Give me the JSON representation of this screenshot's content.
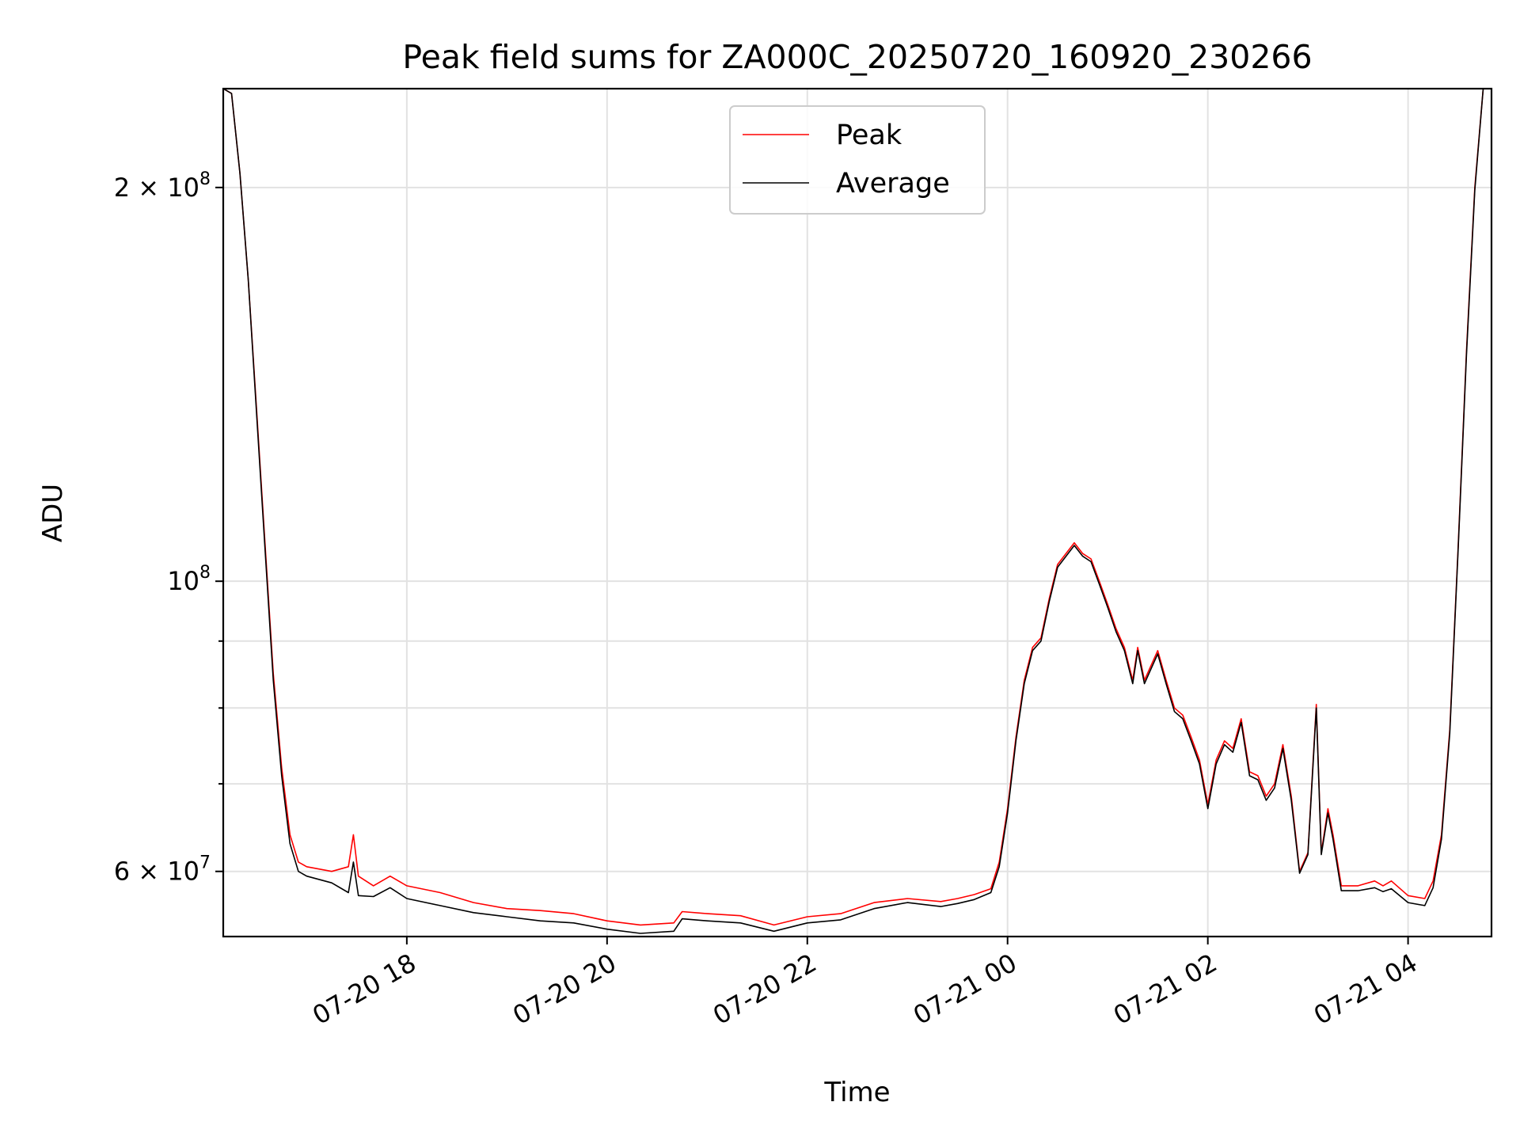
{
  "chart_data": {
    "type": "line",
    "title": "Peak field sums for ZA000C_20250720_160920_230266",
    "xlabel": "Time",
    "ylabel": "ADU",
    "yscale": "log",
    "grid": true,
    "legend_position": "top-center",
    "x_range": [
      "2025-07-20 16:10",
      "2025-07-21 04:50"
    ],
    "ylim": [
      53500000,
      238000000
    ],
    "x_ticks": [
      {
        "value": "2025-07-20 18:00",
        "label": "07-20 18"
      },
      {
        "value": "2025-07-20 20:00",
        "label": "07-20 20"
      },
      {
        "value": "2025-07-20 22:00",
        "label": "07-20 22"
      },
      {
        "value": "2025-07-21 00:00",
        "label": "07-21 00"
      },
      {
        "value": "2025-07-21 02:00",
        "label": "07-21 02"
      },
      {
        "value": "2025-07-21 04:00",
        "label": "07-21 04"
      }
    ],
    "y_ticks": [
      {
        "value": 60000000,
        "base": "6 × 10",
        "exp": "7"
      },
      {
        "value": 100000000,
        "base": "10",
        "exp": "8"
      },
      {
        "value": 200000000,
        "base": "2 × 10",
        "exp": "8"
      }
    ],
    "y_minor_ticks": [
      70000000,
      80000000,
      90000000
    ],
    "series": [
      {
        "name": "Peak",
        "color": "#ff0000",
        "points": [
          [
            "2025-07-20 16:10",
            238000000
          ],
          [
            "2025-07-20 16:15",
            236000000
          ],
          [
            "2025-07-20 16:20",
            205000000
          ],
          [
            "2025-07-20 16:25",
            170000000
          ],
          [
            "2025-07-20 16:30",
            135000000
          ],
          [
            "2025-07-20 16:35",
            107000000
          ],
          [
            "2025-07-20 16:40",
            85000000
          ],
          [
            "2025-07-20 16:45",
            72000000
          ],
          [
            "2025-07-20 16:50",
            64000000
          ],
          [
            "2025-07-20 16:55",
            61000000
          ],
          [
            "2025-07-20 17:00",
            60500000
          ],
          [
            "2025-07-20 17:15",
            60000000
          ],
          [
            "2025-07-20 17:25",
            60500000
          ],
          [
            "2025-07-20 17:28",
            64000000
          ],
          [
            "2025-07-20 17:31",
            59500000
          ],
          [
            "2025-07-20 17:40",
            58500000
          ],
          [
            "2025-07-20 17:50",
            59500000
          ],
          [
            "2025-07-20 18:00",
            58500000
          ],
          [
            "2025-07-20 18:20",
            57800000
          ],
          [
            "2025-07-20 18:40",
            56800000
          ],
          [
            "2025-07-20 19:00",
            56200000
          ],
          [
            "2025-07-20 19:20",
            56000000
          ],
          [
            "2025-07-20 19:40",
            55700000
          ],
          [
            "2025-07-20 20:00",
            55000000
          ],
          [
            "2025-07-20 20:20",
            54600000
          ],
          [
            "2025-07-20 20:40",
            54800000
          ],
          [
            "2025-07-20 20:45",
            55900000
          ],
          [
            "2025-07-20 21:00",
            55700000
          ],
          [
            "2025-07-20 21:20",
            55500000
          ],
          [
            "2025-07-20 21:40",
            54600000
          ],
          [
            "2025-07-20 22:00",
            55400000
          ],
          [
            "2025-07-20 22:20",
            55700000
          ],
          [
            "2025-07-20 22:40",
            56800000
          ],
          [
            "2025-07-20 23:00",
            57200000
          ],
          [
            "2025-07-20 23:20",
            56900000
          ],
          [
            "2025-07-20 23:30",
            57200000
          ],
          [
            "2025-07-20 23:40",
            57600000
          ],
          [
            "2025-07-20 23:50",
            58200000
          ],
          [
            "2025-07-20 23:55",
            61000000
          ],
          [
            "2025-07-21 00:00",
            67000000
          ],
          [
            "2025-07-21 00:05",
            76000000
          ],
          [
            "2025-07-21 00:10",
            84000000
          ],
          [
            "2025-07-21 00:15",
            89000000
          ],
          [
            "2025-07-21 00:20",
            90500000
          ],
          [
            "2025-07-21 00:25",
            97000000
          ],
          [
            "2025-07-21 00:30",
            103000000
          ],
          [
            "2025-07-21 00:40",
            107000000
          ],
          [
            "2025-07-21 00:45",
            105000000
          ],
          [
            "2025-07-21 00:50",
            104000000
          ],
          [
            "2025-07-21 00:55",
            100000000
          ],
          [
            "2025-07-21 01:00",
            96000000
          ],
          [
            "2025-07-21 01:05",
            92000000
          ],
          [
            "2025-07-21 01:10",
            89000000
          ],
          [
            "2025-07-21 01:15",
            84000000
          ],
          [
            "2025-07-21 01:18",
            89000000
          ],
          [
            "2025-07-21 01:22",
            84000000
          ],
          [
            "2025-07-21 01:30",
            88500000
          ],
          [
            "2025-07-21 01:35",
            84000000
          ],
          [
            "2025-07-21 01:40",
            80000000
          ],
          [
            "2025-07-21 01:45",
            79000000
          ],
          [
            "2025-07-21 01:50",
            76000000
          ],
          [
            "2025-07-21 01:55",
            73000000
          ],
          [
            "2025-07-21 02:00",
            67500000
          ],
          [
            "2025-07-21 02:05",
            73000000
          ],
          [
            "2025-07-21 02:10",
            75500000
          ],
          [
            "2025-07-21 02:15",
            74500000
          ],
          [
            "2025-07-21 02:20",
            78500000
          ],
          [
            "2025-07-21 02:25",
            71500000
          ],
          [
            "2025-07-21 02:30",
            71000000
          ],
          [
            "2025-07-21 02:35",
            68500000
          ],
          [
            "2025-07-21 02:40",
            70000000
          ],
          [
            "2025-07-21 02:45",
            75000000
          ],
          [
            "2025-07-21 02:50",
            68500000
          ],
          [
            "2025-07-21 02:55",
            60000000
          ],
          [
            "2025-07-21 03:00",
            62000000
          ],
          [
            "2025-07-21 03:05",
            80500000
          ],
          [
            "2025-07-21 03:08",
            62000000
          ],
          [
            "2025-07-21 03:12",
            67000000
          ],
          [
            "2025-07-21 03:15",
            64000000
          ],
          [
            "2025-07-21 03:20",
            58500000
          ],
          [
            "2025-07-21 03:30",
            58500000
          ],
          [
            "2025-07-21 03:40",
            59000000
          ],
          [
            "2025-07-21 03:45",
            58500000
          ],
          [
            "2025-07-21 03:50",
            59000000
          ],
          [
            "2025-07-21 04:00",
            57500000
          ],
          [
            "2025-07-21 04:10",
            57200000
          ],
          [
            "2025-07-21 04:15",
            59000000
          ],
          [
            "2025-07-21 04:20",
            64000000
          ],
          [
            "2025-07-21 04:25",
            77000000
          ],
          [
            "2025-07-21 04:30",
            106000000
          ],
          [
            "2025-07-21 04:35",
            150000000
          ],
          [
            "2025-07-21 04:40",
            200000000
          ],
          [
            "2025-07-21 04:45",
            238000000
          ],
          [
            "2025-07-21 04:50",
            238000000
          ]
        ]
      },
      {
        "name": "Average",
        "color": "#000000",
        "points": [
          [
            "2025-07-20 16:10",
            238000000
          ],
          [
            "2025-07-20 16:15",
            236000000
          ],
          [
            "2025-07-20 16:20",
            205000000
          ],
          [
            "2025-07-20 16:25",
            170000000
          ],
          [
            "2025-07-20 16:30",
            134000000
          ],
          [
            "2025-07-20 16:35",
            106000000
          ],
          [
            "2025-07-20 16:40",
            84000000
          ],
          [
            "2025-07-20 16:45",
            71000000
          ],
          [
            "2025-07-20 16:50",
            63000000
          ],
          [
            "2025-07-20 16:55",
            60000000
          ],
          [
            "2025-07-20 17:00",
            59500000
          ],
          [
            "2025-07-20 17:15",
            58800000
          ],
          [
            "2025-07-20 17:25",
            57800000
          ],
          [
            "2025-07-20 17:28",
            61000000
          ],
          [
            "2025-07-20 17:31",
            57500000
          ],
          [
            "2025-07-20 17:40",
            57400000
          ],
          [
            "2025-07-20 17:50",
            58300000
          ],
          [
            "2025-07-20 18:00",
            57200000
          ],
          [
            "2025-07-20 18:20",
            56500000
          ],
          [
            "2025-07-20 18:40",
            55800000
          ],
          [
            "2025-07-20 19:00",
            55400000
          ],
          [
            "2025-07-20 19:20",
            55000000
          ],
          [
            "2025-07-20 19:40",
            54800000
          ],
          [
            "2025-07-20 20:00",
            54200000
          ],
          [
            "2025-07-20 20:20",
            53800000
          ],
          [
            "2025-07-20 20:40",
            54000000
          ],
          [
            "2025-07-20 20:45",
            55200000
          ],
          [
            "2025-07-20 21:00",
            55000000
          ],
          [
            "2025-07-20 21:20",
            54800000
          ],
          [
            "2025-07-20 21:40",
            54000000
          ],
          [
            "2025-07-20 22:00",
            54800000
          ],
          [
            "2025-07-20 22:20",
            55100000
          ],
          [
            "2025-07-20 22:40",
            56200000
          ],
          [
            "2025-07-20 23:00",
            56800000
          ],
          [
            "2025-07-20 23:20",
            56400000
          ],
          [
            "2025-07-20 23:30",
            56700000
          ],
          [
            "2025-07-20 23:40",
            57100000
          ],
          [
            "2025-07-20 23:50",
            57800000
          ],
          [
            "2025-07-20 23:55",
            60500000
          ],
          [
            "2025-07-21 00:00",
            66500000
          ],
          [
            "2025-07-21 00:05",
            75500000
          ],
          [
            "2025-07-21 00:10",
            83500000
          ],
          [
            "2025-07-21 00:15",
            88500000
          ],
          [
            "2025-07-21 00:20",
            90000000
          ],
          [
            "2025-07-21 00:25",
            96500000
          ],
          [
            "2025-07-21 00:30",
            102500000
          ],
          [
            "2025-07-21 00:40",
            106500000
          ],
          [
            "2025-07-21 00:45",
            104500000
          ],
          [
            "2025-07-21 00:50",
            103500000
          ],
          [
            "2025-07-21 00:55",
            99500000
          ],
          [
            "2025-07-21 01:00",
            95500000
          ],
          [
            "2025-07-21 01:05",
            91500000
          ],
          [
            "2025-07-21 01:10",
            88500000
          ],
          [
            "2025-07-21 01:15",
            83500000
          ],
          [
            "2025-07-21 01:18",
            88500000
          ],
          [
            "2025-07-21 01:22",
            83500000
          ],
          [
            "2025-07-21 01:30",
            88000000
          ],
          [
            "2025-07-21 01:35",
            83500000
          ],
          [
            "2025-07-21 01:40",
            79500000
          ],
          [
            "2025-07-21 01:45",
            78500000
          ],
          [
            "2025-07-21 01:50",
            75500000
          ],
          [
            "2025-07-21 01:55",
            72500000
          ],
          [
            "2025-07-21 02:00",
            67000000
          ],
          [
            "2025-07-21 02:05",
            72500000
          ],
          [
            "2025-07-21 02:10",
            75000000
          ],
          [
            "2025-07-21 02:15",
            74000000
          ],
          [
            "2025-07-21 02:20",
            78000000
          ],
          [
            "2025-07-21 02:25",
            71000000
          ],
          [
            "2025-07-21 02:30",
            70500000
          ],
          [
            "2025-07-21 02:35",
            68000000
          ],
          [
            "2025-07-21 02:40",
            69500000
          ],
          [
            "2025-07-21 02:45",
            74500000
          ],
          [
            "2025-07-21 02:50",
            68000000
          ],
          [
            "2025-07-21 02:55",
            59800000
          ],
          [
            "2025-07-21 03:00",
            61800000
          ],
          [
            "2025-07-21 03:05",
            80000000
          ],
          [
            "2025-07-21 03:08",
            61800000
          ],
          [
            "2025-07-21 03:12",
            66500000
          ],
          [
            "2025-07-21 03:15",
            63500000
          ],
          [
            "2025-07-21 03:20",
            58000000
          ],
          [
            "2025-07-21 03:30",
            58000000
          ],
          [
            "2025-07-21 03:40",
            58300000
          ],
          [
            "2025-07-21 03:45",
            57900000
          ],
          [
            "2025-07-21 03:50",
            58200000
          ],
          [
            "2025-07-21 04:00",
            56800000
          ],
          [
            "2025-07-21 04:10",
            56500000
          ],
          [
            "2025-07-21 04:15",
            58300000
          ],
          [
            "2025-07-21 04:20",
            63500000
          ],
          [
            "2025-07-21 04:25",
            76500000
          ],
          [
            "2025-07-21 04:30",
            105500000
          ],
          [
            "2025-07-21 04:35",
            149000000
          ],
          [
            "2025-07-21 04:40",
            199000000
          ],
          [
            "2025-07-21 04:45",
            238000000
          ],
          [
            "2025-07-21 04:50",
            238000000
          ]
        ]
      }
    ]
  }
}
